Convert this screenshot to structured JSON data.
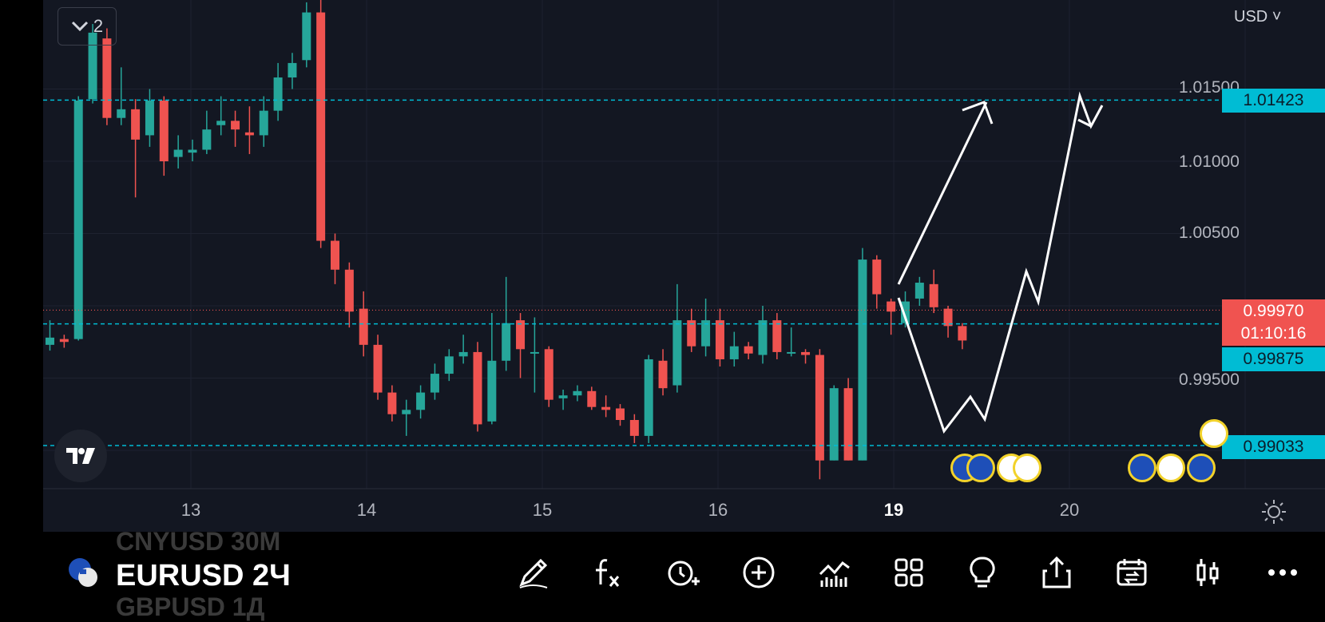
{
  "chart": {
    "currency": "USD",
    "indicator_count": "2",
    "price_axis": [
      "1.01500",
      "1.01000",
      "1.00500",
      "0.99500"
    ],
    "tags": {
      "upper_level": "1.01423",
      "current_price": "0.99970",
      "countdown": "01:10:16",
      "mid_level": "0.99875",
      "lower_level": "0.99033"
    },
    "dates": [
      "13",
      "14",
      "15",
      "16",
      "19",
      "20"
    ],
    "colors": {
      "up": "#26a69a",
      "down": "#ef5350",
      "level_line": "#00bcd4",
      "background": "#131722"
    }
  },
  "bottom": {
    "symbol": "EURUSD 2Ч",
    "symbol_prev": "CNYUSD 30M",
    "symbol_next": "GBPUSD 1Д",
    "tools": [
      "pen-icon",
      "fx-icon",
      "alert-icon",
      "plus-icon",
      "indicators-icon",
      "layouts-icon",
      "idea-icon",
      "share-icon",
      "calendar-icon",
      "chart-type-icon",
      "more-icon"
    ]
  }
}
